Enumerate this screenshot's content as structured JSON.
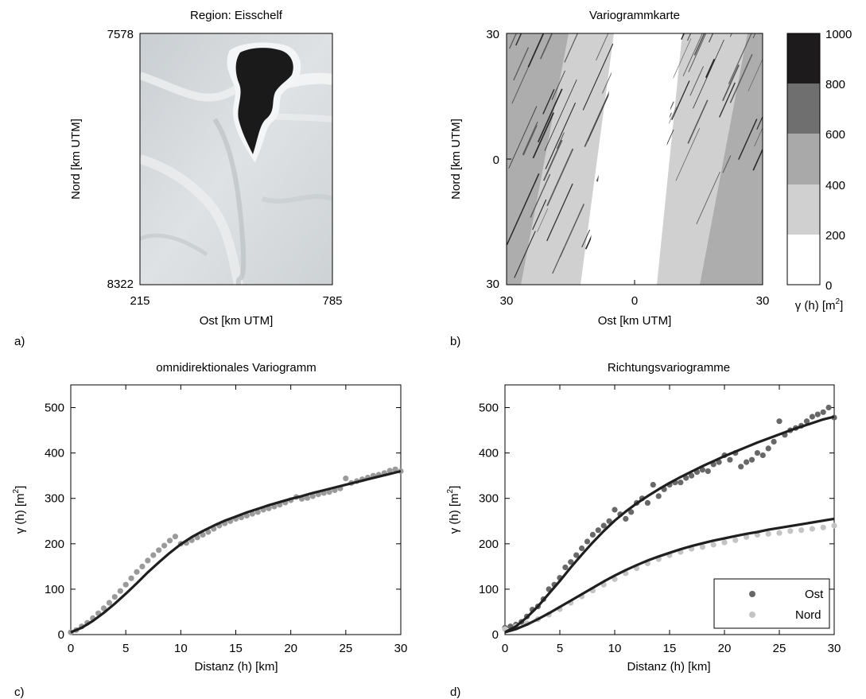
{
  "panel_a": {
    "title": "Region: Eisschelf",
    "letter": "a)",
    "xlabel": "Ost [km UTM]",
    "ylabel": "Nord [km UTM]",
    "x_ticks": [
      "215",
      "785"
    ],
    "y_ticks": [
      "7578",
      "8322"
    ],
    "colors": {
      "ice": "#d6dadc",
      "mass": "#1b1a1b"
    }
  },
  "panel_b": {
    "title": "Variogrammkarte",
    "letter": "b)",
    "xlabel": "Ost [km UTM]",
    "ylabel": "Nord [km UTM]",
    "x_ticks": [
      "30",
      "0",
      "30"
    ],
    "y_ticks": [
      "30",
      "0",
      "30"
    ],
    "colorbar": {
      "ticks": [
        "0",
        "200",
        "400",
        "600",
        "800",
        "1000"
      ],
      "levels": [
        {
          "range": [
            0,
            200
          ],
          "color": "#ffffff"
        },
        {
          "range": [
            200,
            400
          ],
          "color": "#d0d0d0"
        },
        {
          "range": [
            400,
            600
          ],
          "color": "#a9a9a9"
        },
        {
          "range": [
            600,
            800
          ],
          "color": "#6f6f6f"
        },
        {
          "range": [
            800,
            1000
          ],
          "color": "#1e1b1c"
        }
      ],
      "label_main": "γ (h) [m",
      "label_sup": "2",
      "label_end": "]"
    }
  },
  "chart_data": [
    {
      "panel": "c",
      "type": "scatter",
      "letter": "c)",
      "title": "omnidirektionales Variogramm",
      "xlabel": "Distanz (h) [km]",
      "ylabel_main": "γ (h) [m",
      "ylabel_sup": "2",
      "ylabel_end": "]",
      "xlim": [
        0,
        30
      ],
      "ylim": [
        0,
        550
      ],
      "xticks": [
        0,
        5,
        10,
        15,
        20,
        25,
        30
      ],
      "yticks": [
        0,
        100,
        200,
        300,
        400,
        500
      ],
      "grid": false,
      "series": [
        {
          "role": "experimental",
          "color": "#9a9a9a",
          "x": [
            0,
            0.5,
            1,
            1.5,
            2,
            2.5,
            3,
            3.5,
            4,
            4.5,
            5,
            5.5,
            6,
            6.5,
            7,
            7.5,
            8,
            8.5,
            9,
            9.5,
            10,
            10.5,
            11,
            11.5,
            12,
            12.5,
            13,
            13.5,
            14,
            14.5,
            15,
            15.5,
            16,
            16.5,
            17,
            17.5,
            18,
            18.5,
            19,
            19.5,
            20,
            20.5,
            21,
            21.5,
            22,
            22.5,
            23,
            23.5,
            24,
            24.5,
            25,
            25.5,
            26,
            26.5,
            27,
            27.5,
            28,
            28.5,
            29,
            29.5,
            30
          ],
          "y": [
            5,
            10,
            18,
            26,
            36,
            47,
            58,
            70,
            83,
            96,
            110,
            124,
            138,
            150,
            163,
            175,
            186,
            196,
            207,
            216,
            200,
            202,
            208,
            214,
            220,
            226,
            233,
            240,
            245,
            250,
            255,
            258,
            262,
            266,
            270,
            275,
            278,
            282,
            286,
            291,
            296,
            303,
            299,
            301,
            305,
            309,
            312,
            314,
            318,
            322,
            344,
            334,
            338,
            342,
            346,
            350,
            352,
            356,
            361,
            364,
            360
          ]
        },
        {
          "role": "model",
          "color": "#1f1f1f",
          "x": [
            0,
            1,
            2,
            3,
            4,
            5,
            6,
            7,
            8,
            9,
            10,
            11,
            12,
            13,
            14,
            15,
            16,
            17,
            18,
            19,
            20,
            21,
            22,
            23,
            24,
            25,
            26,
            27,
            28,
            29,
            30
          ],
          "y": [
            5,
            15,
            30,
            48,
            68,
            90,
            113,
            137,
            159,
            180,
            199,
            215,
            228,
            240,
            251,
            260,
            269,
            277,
            285,
            292,
            299,
            305,
            312,
            318,
            324,
            330,
            336,
            342,
            348,
            354,
            360
          ]
        }
      ]
    },
    {
      "panel": "d",
      "type": "scatter",
      "letter": "d)",
      "title": "Richtungsvariogramme",
      "xlabel": "Distanz (h) [km]",
      "ylabel_main": "γ (h) [m",
      "ylabel_sup": "2",
      "ylabel_end": "]",
      "xlim": [
        0,
        30
      ],
      "ylim": [
        0,
        550
      ],
      "xticks": [
        0,
        5,
        10,
        15,
        20,
        25,
        30
      ],
      "yticks": [
        0,
        100,
        200,
        300,
        400,
        500
      ],
      "grid": false,
      "legend_position": "bottom-right",
      "series": [
        {
          "name": "Ost",
          "color": "#686868",
          "x": [
            0,
            0.5,
            1,
            1.5,
            2,
            2.5,
            3,
            3.5,
            4,
            4.5,
            5,
            5.5,
            6,
            6.5,
            7,
            7.5,
            8,
            8.5,
            9,
            9.5,
            10,
            10.5,
            11,
            11.5,
            12,
            12.5,
            13,
            13.5,
            14,
            14.5,
            15,
            15.5,
            16,
            16.5,
            17,
            17.5,
            18,
            18.5,
            19,
            19.5,
            20,
            20.5,
            21,
            21.5,
            22,
            22.5,
            23,
            23.5,
            24,
            24.5,
            25,
            25.5,
            26,
            26.5,
            27,
            27.5,
            28,
            28.5,
            29,
            29.5,
            30
          ],
          "y": [
            15,
            18,
            22,
            28,
            40,
            55,
            62,
            78,
            100,
            110,
            125,
            148,
            160,
            175,
            190,
            205,
            220,
            230,
            240,
            250,
            275,
            265,
            255,
            270,
            290,
            300,
            290,
            330,
            305,
            320,
            330,
            335,
            335,
            345,
            350,
            358,
            363,
            360,
            375,
            380,
            395,
            385,
            400,
            370,
            380,
            385,
            400,
            395,
            410,
            425,
            470,
            440,
            450,
            455,
            460,
            470,
            480,
            485,
            490,
            500,
            478
          ]
        },
        {
          "name": "Nord",
          "color": "#c4c4c4",
          "x": [
            0,
            1,
            2,
            3,
            4,
            5,
            6,
            7,
            8,
            9,
            10,
            11,
            12,
            13,
            14,
            15,
            16,
            17,
            18,
            19,
            20,
            21,
            22,
            23,
            24,
            25,
            26,
            27,
            28,
            29,
            30
          ],
          "y": [
            12,
            18,
            25,
            34,
            44,
            56,
            70,
            84,
            97,
            110,
            122,
            135,
            146,
            157,
            166,
            175,
            182,
            189,
            193,
            198,
            203,
            208,
            215,
            220,
            222,
            224,
            228,
            230,
            233,
            236,
            240
          ]
        },
        {
          "role": "model-ost",
          "color": "#1f1f1f",
          "x": [
            0,
            1,
            2,
            3,
            4,
            5,
            6,
            7,
            8,
            9,
            10,
            11,
            12,
            13,
            14,
            15,
            16,
            17,
            18,
            19,
            20,
            21,
            22,
            23,
            24,
            25,
            26,
            27,
            28,
            29,
            30
          ],
          "y": [
            5,
            18,
            38,
            62,
            90,
            118,
            148,
            176,
            203,
            228,
            251,
            271,
            289,
            305,
            320,
            334,
            347,
            359,
            371,
            382,
            393,
            403,
            413,
            423,
            432,
            441,
            450,
            458,
            466,
            474,
            480
          ]
        },
        {
          "role": "model-nord",
          "color": "#1f1f1f",
          "x": [
            0,
            1,
            2,
            3,
            4,
            5,
            6,
            7,
            8,
            9,
            10,
            11,
            12,
            13,
            14,
            15,
            16,
            17,
            18,
            19,
            20,
            21,
            22,
            23,
            24,
            25,
            26,
            27,
            28,
            29,
            30
          ],
          "y": [
            5,
            12,
            22,
            34,
            47,
            61,
            75,
            89,
            103,
            117,
            130,
            142,
            153,
            163,
            172,
            180,
            188,
            195,
            201,
            207,
            212,
            217,
            222,
            226,
            231,
            235,
            239,
            243,
            247,
            251,
            255
          ]
        }
      ]
    }
  ]
}
